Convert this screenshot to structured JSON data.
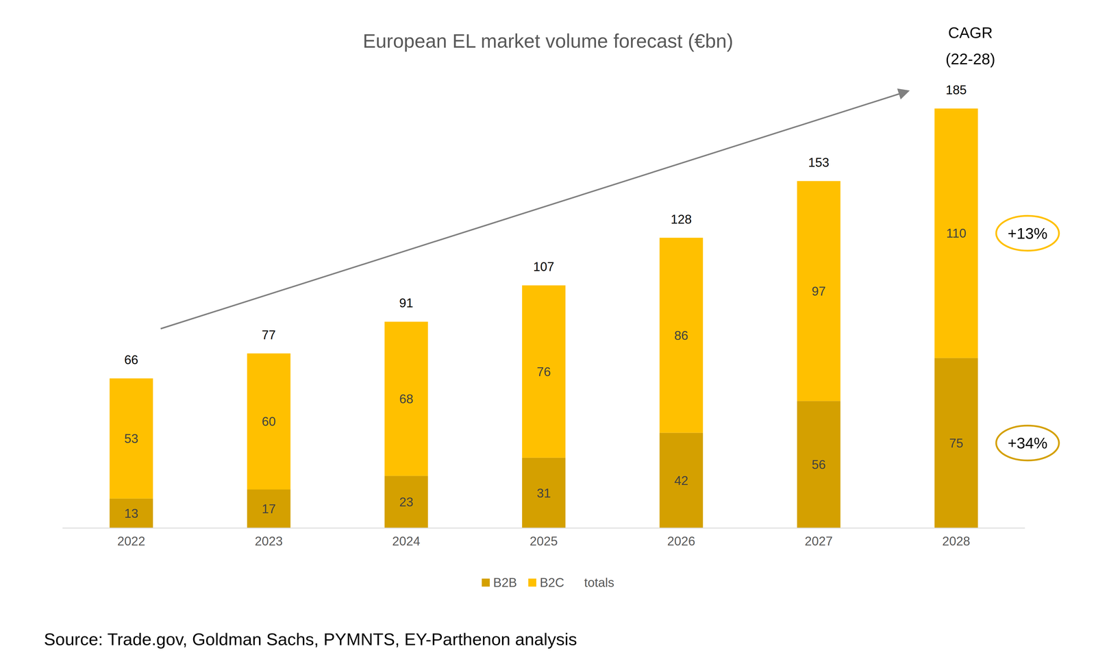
{
  "chart_data": {
    "type": "bar",
    "title": "European EL market volume forecast (€bn)",
    "categories": [
      "2022",
      "2023",
      "2024",
      "2025",
      "2026",
      "2027",
      "2028"
    ],
    "series": [
      {
        "name": "B2B",
        "type": "bar",
        "color": "#d4a000",
        "values": [
          13,
          17,
          23,
          31,
          42,
          56,
          75
        ],
        "annotation": "+34%"
      },
      {
        "name": "B2C",
        "type": "bar",
        "color": "#ffc000",
        "values": [
          53,
          60,
          68,
          76,
          86,
          97,
          110
        ],
        "annotation": "+13%"
      },
      {
        "name": "totals",
        "type": "line",
        "line_style": "none",
        "values": [
          66,
          77,
          91,
          107,
          128,
          153,
          185
        ]
      }
    ],
    "annotation_title": [
      "CAGR",
      "(22-28)"
    ],
    "source": "Source: Trade.gov, Goldman Sachs, PYMNTS, EY-Parthenon analysis",
    "ylim": [
      0,
      185
    ],
    "yticks": [
      0,
      185
    ],
    "stacked": true,
    "data_labels": true,
    "grid": false,
    "legend": "bottom",
    "tick_labels": "x"
  }
}
